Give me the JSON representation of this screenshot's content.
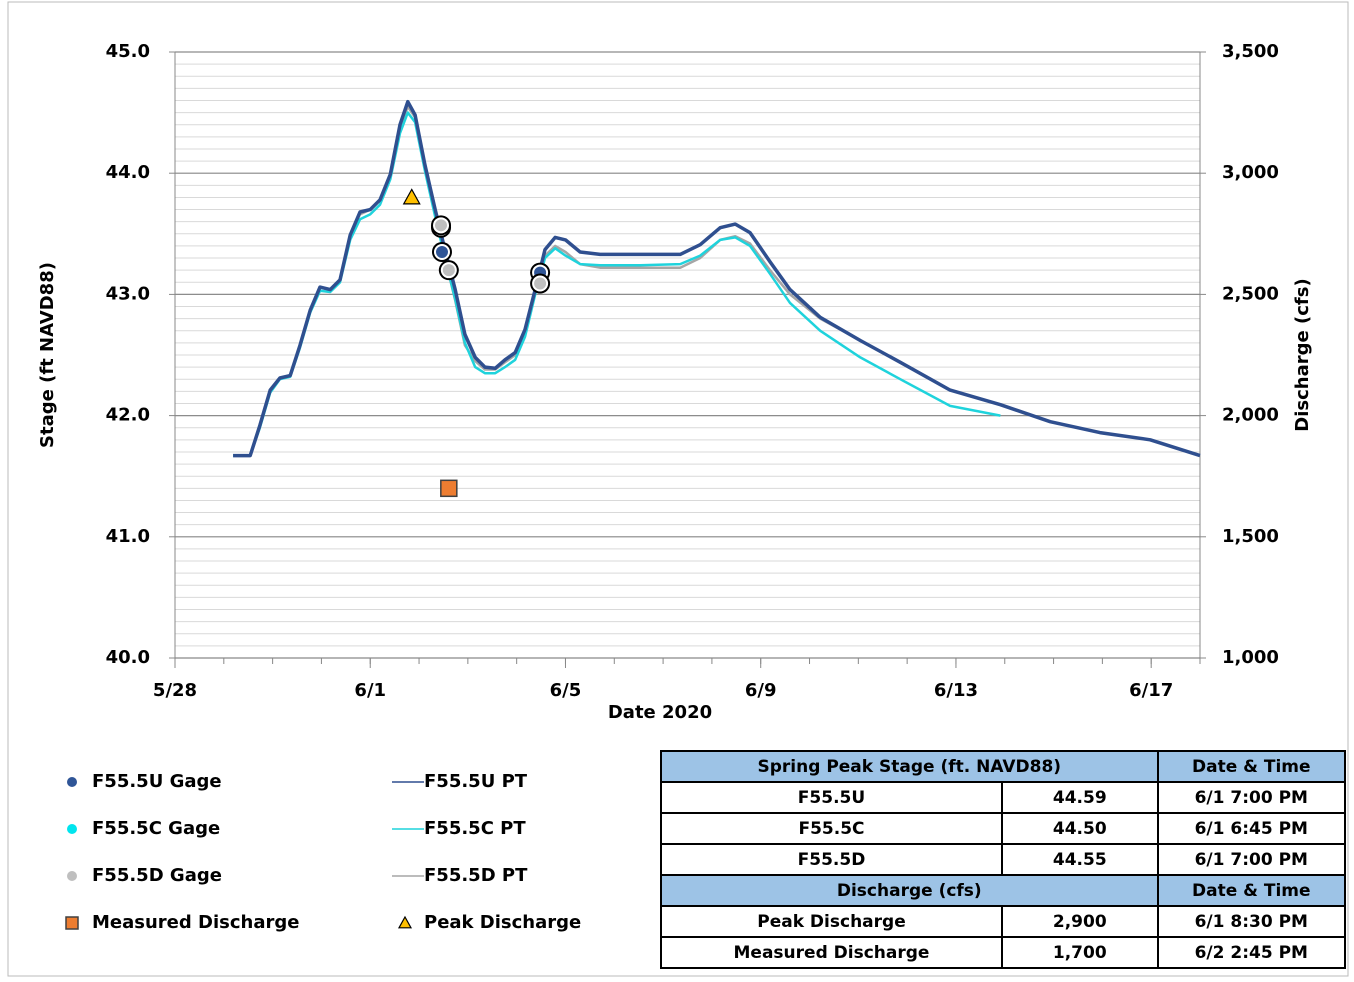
{
  "chart_data": {
    "type": "line",
    "xlabel": "Date 2020",
    "ylabel": "Stage (ft NAVD88)",
    "y2label": "Discharge (cfs)",
    "xlim": [
      0,
      21
    ],
    "xticks": [
      {
        "value": 0,
        "label": "5/28"
      },
      {
        "value": 4,
        "label": "6/1"
      },
      {
        "value": 8,
        "label": "6/5"
      },
      {
        "value": 12,
        "label": "6/9"
      },
      {
        "value": 16,
        "label": "6/13"
      },
      {
        "value": 20,
        "label": "6/17"
      }
    ],
    "ylim": [
      40,
      45
    ],
    "yticks": [
      {
        "value": 40,
        "label": "40.0"
      },
      {
        "value": 41,
        "label": "41.0"
      },
      {
        "value": 42,
        "label": "42.0"
      },
      {
        "value": 43,
        "label": "43.0"
      },
      {
        "value": 44,
        "label": "44.0"
      },
      {
        "value": 45,
        "label": "45.0"
      }
    ],
    "y2lim": [
      1000,
      3500
    ],
    "y2ticks": [
      {
        "value": 1000,
        "label": "1,000"
      },
      {
        "value": 1500,
        "label": "1,500"
      },
      {
        "value": 2000,
        "label": "2,000"
      },
      {
        "value": 2500,
        "label": "2,500"
      },
      {
        "value": 3000,
        "label": "3,000"
      },
      {
        "value": 3500,
        "label": "3,500"
      }
    ],
    "grid": true,
    "x": [
      1.19,
      1.54,
      1.74,
      1.95,
      2.15,
      2.36,
      2.56,
      2.77,
      2.97,
      3.18,
      3.38,
      3.59,
      3.79,
      4.0,
      4.2,
      4.41,
      4.61,
      4.77,
      4.92,
      5.12,
      5.33,
      5.53,
      5.74,
      5.94,
      6.15,
      6.35,
      6.56,
      6.76,
      6.97,
      7.17,
      7.38,
      7.58,
      7.79,
      8.0,
      8.3,
      8.71,
      9.53,
      10.35,
      10.76,
      11.17,
      11.48,
      11.78,
      12.19,
      12.6,
      13.22,
      14.04,
      14.86,
      15.88,
      16.91,
      17.93,
      18.95,
      19.98,
      21.0
    ],
    "series": [
      {
        "name": "F55.5U Gage",
        "kind": "scatter",
        "marker": "circle",
        "color": "#2f5597",
        "x": [
          5.47,
          7.48
        ],
        "values": [
          43.35,
          43.18
        ]
      },
      {
        "name": "F55.5C Gage",
        "kind": "scatter",
        "marker": "circle",
        "color": "#00e5ee",
        "x": [
          5.45
        ],
        "values": [
          43.55
        ]
      },
      {
        "name": "F55.5D Gage",
        "kind": "scatter",
        "marker": "circle",
        "color": "#bfbfbf",
        "x": [
          5.45,
          5.61,
          7.48
        ],
        "values": [
          43.57,
          43.2,
          43.09
        ]
      },
      {
        "name": "Measured Discharge",
        "kind": "scatter",
        "marker": "square",
        "color": "#ed7d31",
        "axis": "y2",
        "x": [
          5.61
        ],
        "values": [
          1700
        ]
      },
      {
        "name": "F55.5U PT",
        "kind": "line",
        "color": "#2f4f8f",
        "values": [
          41.67,
          41.67,
          41.92,
          42.21,
          42.31,
          42.33,
          42.58,
          42.87,
          43.06,
          43.04,
          43.12,
          43.49,
          43.68,
          43.7,
          43.78,
          43.99,
          44.4,
          44.59,
          44.48,
          44.07,
          43.7,
          43.37,
          43.04,
          42.67,
          42.48,
          42.4,
          42.39,
          42.46,
          42.52,
          42.71,
          43.04,
          43.37,
          43.47,
          43.45,
          43.35,
          43.33,
          43.33,
          43.33,
          43.41,
          43.55,
          43.58,
          43.51,
          43.27,
          43.04,
          42.81,
          42.62,
          42.44,
          42.21,
          42.09,
          41.95,
          41.86,
          41.8,
          41.67
        ]
      },
      {
        "name": "F55.5C PT",
        "kind": "line",
        "color": "#1fd3dc",
        "values": [
          41.67,
          41.67,
          41.9,
          42.19,
          42.3,
          42.32,
          42.56,
          42.85,
          43.03,
          43.02,
          43.1,
          43.45,
          43.62,
          43.66,
          43.74,
          43.95,
          44.33,
          44.5,
          44.42,
          44.02,
          43.64,
          43.3,
          42.96,
          42.6,
          42.4,
          42.35,
          42.35,
          42.4,
          42.46,
          42.65,
          43.0,
          43.3,
          43.38,
          43.32,
          43.25,
          43.24,
          43.24,
          43.25,
          43.32,
          43.45,
          43.47,
          43.4,
          43.17,
          42.93,
          42.7,
          42.48,
          42.3,
          42.08,
          42.0,
          null,
          null,
          null,
          null
        ]
      },
      {
        "name": "F55.5D PT",
        "kind": "line",
        "color": "#a6a6a6",
        "values": [
          41.67,
          41.67,
          41.92,
          42.21,
          42.31,
          42.33,
          42.58,
          42.87,
          43.06,
          43.04,
          43.12,
          43.49,
          43.66,
          43.7,
          43.78,
          43.99,
          44.37,
          44.55,
          44.46,
          44.05,
          43.67,
          43.3,
          42.95,
          42.58,
          42.45,
          42.38,
          42.38,
          42.44,
          42.5,
          42.69,
          43.02,
          43.32,
          43.4,
          43.35,
          43.25,
          43.22,
          43.22,
          43.22,
          43.3,
          43.45,
          43.48,
          43.42,
          43.2,
          43.0,
          42.8,
          42.62,
          42.44,
          42.21,
          42.09,
          41.95,
          41.86,
          41.8,
          41.67
        ]
      },
      {
        "name": "Peak Discharge",
        "kind": "scatter",
        "marker": "triangle",
        "color": "#ffc000",
        "axis": "y2",
        "x": [
          4.85
        ],
        "values": [
          2900
        ]
      }
    ]
  },
  "table": {
    "sections": [
      {
        "header": [
          "Spring Peak Stage (ft. NAVD88)",
          "Date & Time"
        ],
        "rows": [
          [
            "F55.5U",
            "44.59",
            "6/1 7:00 PM"
          ],
          [
            "F55.5C",
            "44.50",
            "6/1 6:45 PM"
          ],
          [
            "F55.5D",
            "44.55",
            "6/1 7:00 PM"
          ]
        ]
      },
      {
        "header": [
          "Discharge (cfs)",
          "Date & Time"
        ],
        "rows": [
          [
            "Peak Discharge",
            "2,900",
            "6/1 8:30 PM"
          ],
          [
            "Measured Discharge",
            "1,700",
            "6/2 2:45 PM"
          ]
        ]
      }
    ]
  }
}
